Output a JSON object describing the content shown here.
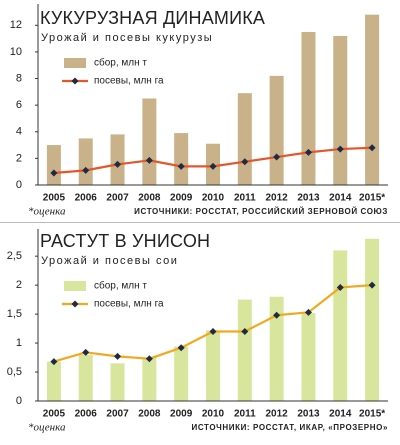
{
  "chart_data": [
    {
      "type": "combo",
      "title": "КУКУРУЗНАЯ ДИНАМИКА",
      "subtitle": "Урожай и посевы кукурузы",
      "categories": [
        "2005",
        "2006",
        "2007",
        "2008",
        "2009",
        "2010",
        "2011",
        "2012",
        "2013",
        "2014",
        "2015*"
      ],
      "series": [
        {
          "name": "сбор, млн т",
          "type": "bar",
          "color": "#c9b18a",
          "values": [
            3.0,
            3.5,
            3.8,
            6.5,
            3.9,
            3.1,
            6.9,
            8.2,
            11.5,
            11.2,
            12.8
          ]
        },
        {
          "name": "посевы, млн га",
          "type": "line",
          "color": "#e2582a",
          "marker_color": "#1f2a44",
          "values": [
            0.9,
            1.1,
            1.55,
            1.85,
            1.4,
            1.4,
            1.75,
            2.1,
            2.45,
            2.7,
            2.8
          ]
        }
      ],
      "ylim": [
        0,
        13.3
      ],
      "yticks": [
        0,
        2,
        4,
        6,
        8,
        10,
        12
      ],
      "note": "*оценка",
      "source": "ИСТОЧНИКИ: РОССТАТ, РОССИЙСКИЙ ЗЕРНОВОЙ СОЮЗ"
    },
    {
      "type": "combo",
      "title": "РАСТУТ В УНИСОН",
      "subtitle": "Урожай и посевы сои",
      "categories": [
        "2005",
        "2006",
        "2007",
        "2008",
        "2009",
        "2010",
        "2011",
        "2012",
        "2013",
        "2014",
        "2015*"
      ],
      "series": [
        {
          "name": "сбор, млн т",
          "type": "bar",
          "color": "#d7e69c",
          "values": [
            0.68,
            0.8,
            0.65,
            0.75,
            0.94,
            1.22,
            1.75,
            1.8,
            1.52,
            2.6,
            2.8
          ]
        },
        {
          "name": "посевы, млн га",
          "type": "line",
          "color": "#f2a91e",
          "marker_color": "#1f2a44",
          "values": [
            0.68,
            0.84,
            0.77,
            0.73,
            0.92,
            1.2,
            1.2,
            1.48,
            1.53,
            1.96,
            2.0
          ]
        }
      ],
      "ylim": [
        0,
        2.9
      ],
      "yticks": [
        0,
        {
          "value": 0.5,
          "label": "0,5"
        },
        1,
        {
          "value": 1.5,
          "label": "1,5"
        },
        2,
        {
          "value": 2.5,
          "label": "2,5"
        }
      ],
      "note": "*оценка",
      "source": "ИСТОЧНИКИ: РОССТАТ, ИКАР, «ПРОЗЕРНО»"
    }
  ]
}
